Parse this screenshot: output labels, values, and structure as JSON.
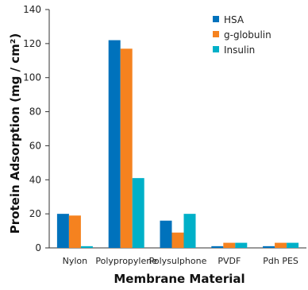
{
  "chart_data": {
    "type": "bar",
    "categories": [
      "Nylon",
      "Polypropylene",
      "Polysulphone",
      "PVDF",
      "Pdh PES"
    ],
    "series": [
      {
        "name": "HSA",
        "color": "#0072bc",
        "values": [
          20,
          122,
          16,
          1,
          1
        ]
      },
      {
        "name": "g-globulin",
        "color": "#f5821f",
        "values": [
          19,
          117,
          9,
          3,
          3
        ]
      },
      {
        "name": "Insulin",
        "color": "#00b0c8",
        "values": [
          1,
          41,
          20,
          3,
          3
        ]
      }
    ],
    "title": "",
    "xlabel": "Membrane Material",
    "ylabel": "Protein Adsorption (mg / cm²)",
    "ylim": [
      0,
      140
    ],
    "yticks": [
      0,
      20,
      40,
      60,
      80,
      100,
      120,
      140
    ],
    "grid": false,
    "legend_position": "top-right"
  }
}
